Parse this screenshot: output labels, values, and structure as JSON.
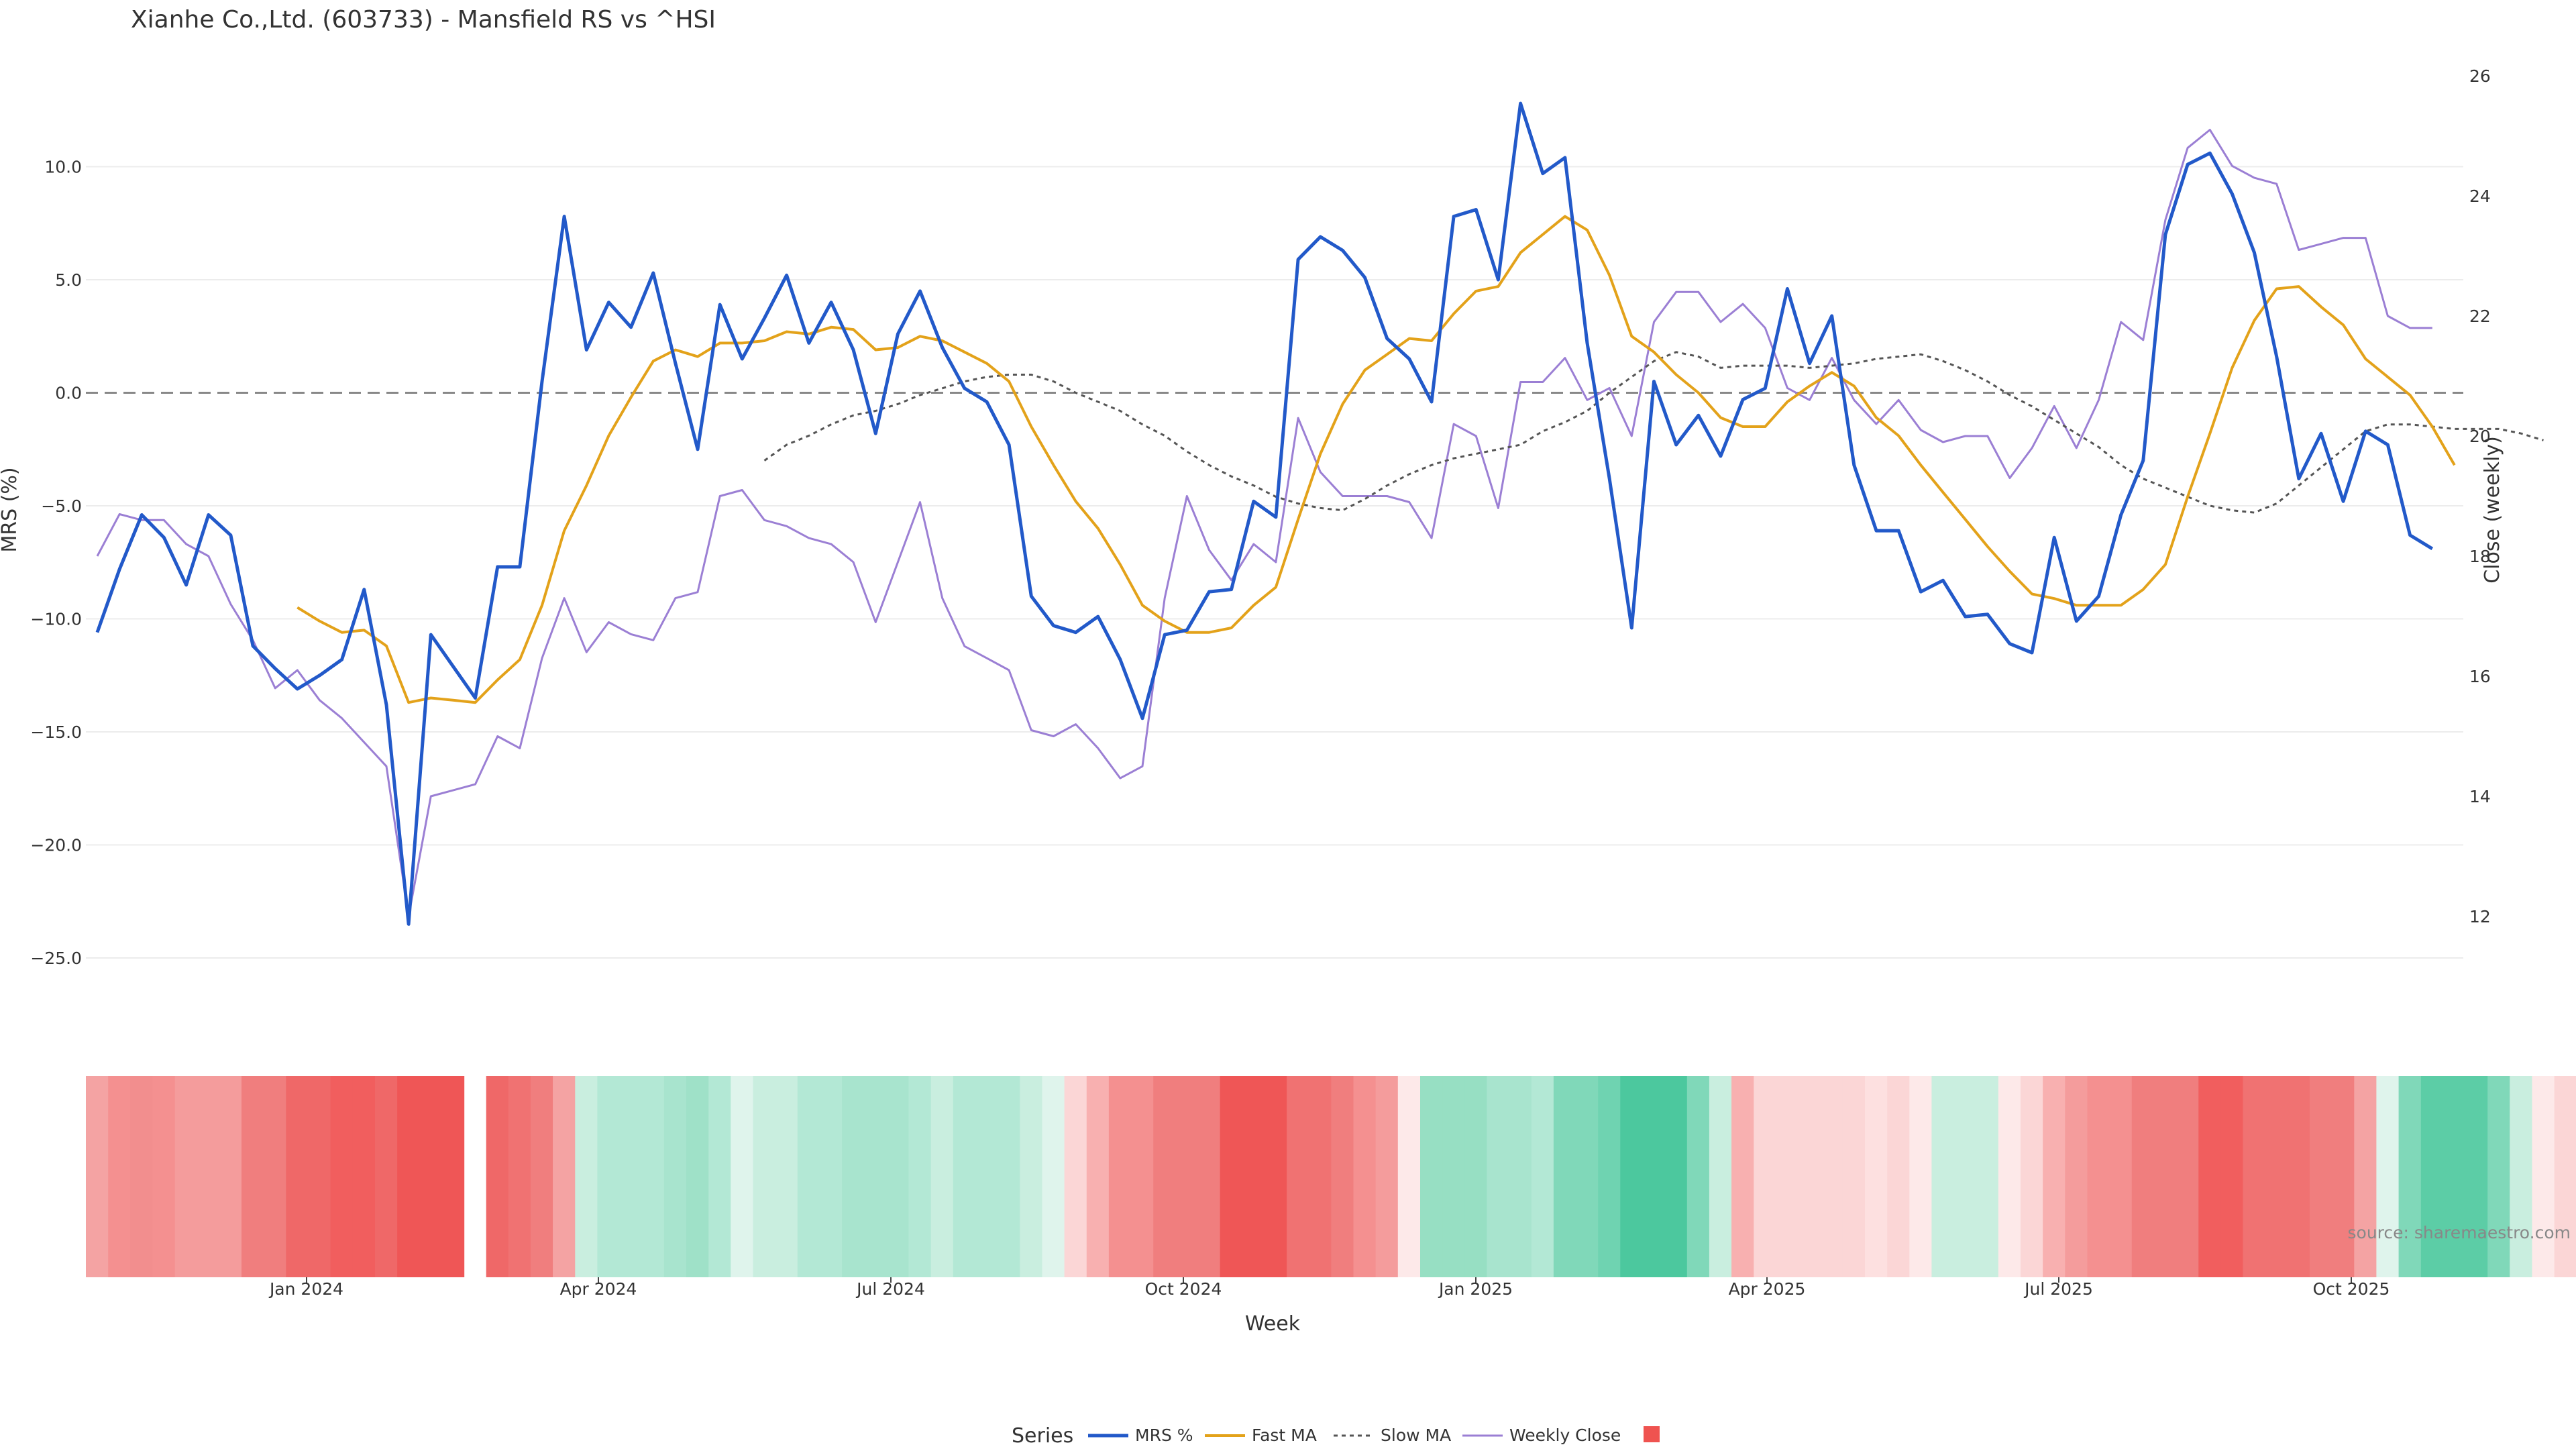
{
  "chart_data": {
    "type": "line",
    "title": "Xianhe Co.,Ltd. (603733) - Mansfield RS vs ^HSI",
    "xlabel": "Week",
    "ylabel": "MRS (%)",
    "y2label": "Close (weekly)",
    "ylim": [
      -28,
      14.5
    ],
    "y2lim": [
      10.5,
      26.5
    ],
    "yticks": [
      "10.0",
      "5.0",
      "0.0",
      "−5.0",
      "−10.0",
      "−15.0",
      "−20.0",
      "−25.0"
    ],
    "y2ticks": [
      "26",
      "24",
      "22",
      "20",
      "18",
      "16",
      "14",
      "12"
    ],
    "xticks": [
      "Jan 2024",
      "Apr 2024",
      "Jul 2024",
      "Oct 2024",
      "Jan 2025",
      "Apr 2025",
      "Jul 2025",
      "Oct 2025"
    ],
    "grid": true,
    "legend": {
      "title": "Series",
      "position": "bottom",
      "items": [
        "MRS %",
        "Fast MA",
        "Slow MA",
        "Weekly Close",
        ""
      ]
    },
    "source": "source: sharemaestro.com",
    "colors": {
      "mrs": "#2259c9",
      "fast": "#e3a21a",
      "slow": "#555555",
      "close": "#9b7fd4",
      "neg": "#ef5350",
      "pos": "#48c89c"
    },
    "series": [
      {
        "name": "MRS %",
        "axis": "left",
        "values": [
          -10.6,
          -7.8,
          -5.4,
          -6.4,
          -8.5,
          -5.4,
          -6.3,
          -11.2,
          -12.2,
          -13.1,
          -12.5,
          -11.8,
          -8.7,
          -13.8,
          -23.5,
          -10.7,
          -12.1,
          -13.5,
          -7.7,
          -7.7,
          0.5,
          7.8,
          1.9,
          4.0,
          2.9,
          5.3,
          1.3,
          -2.5,
          3.9,
          1.5,
          3.3,
          5.2,
          2.2,
          4.0,
          1.9,
          -1.8,
          2.6,
          4.5,
          2.0,
          0.2,
          -0.4,
          -2.3,
          -9.0,
          -10.3,
          -10.6,
          -9.9,
          -11.8,
          -14.4,
          -10.7,
          -10.5,
          -8.8,
          -8.7,
          -4.8,
          -5.5,
          5.9,
          6.9,
          6.3,
          5.1,
          2.4,
          1.5,
          -0.4,
          7.8,
          8.1,
          5.0,
          12.8,
          9.7,
          10.4,
          2.2,
          -3.8,
          -10.4,
          0.5,
          -2.3,
          -1.0,
          -2.8,
          -0.3,
          0.2,
          4.6,
          1.3,
          3.4,
          -3.2,
          -6.1,
          -6.1,
          -8.8,
          -8.3,
          -9.9,
          -9.8,
          -11.1,
          -11.5,
          -6.4,
          -10.1,
          -9.0,
          -5.4,
          -3.0,
          7.0,
          10.1,
          10.6,
          8.8,
          6.2,
          1.6,
          -3.8,
          -1.8,
          -4.8,
          -1.7,
          -2.3,
          -6.3,
          -6.9
        ]
      },
      {
        "name": "Fast MA",
        "axis": "left",
        "start": 9,
        "values": [
          -9.5,
          -10.1,
          -10.6,
          -10.5,
          -11.2,
          -13.7,
          -13.5,
          -13.6,
          -13.7,
          -12.7,
          -11.8,
          -9.4,
          -6.1,
          -4.1,
          -1.9,
          -0.2,
          1.4,
          1.9,
          1.6,
          2.2,
          2.2,
          2.3,
          2.7,
          2.6,
          2.9,
          2.8,
          1.9,
          2.0,
          2.5,
          2.3,
          1.8,
          1.3,
          0.5,
          -1.5,
          -3.2,
          -4.8,
          -6.0,
          -7.6,
          -9.4,
          -10.1,
          -10.6,
          -10.6,
          -10.4,
          -9.4,
          -8.6,
          -5.6,
          -2.7,
          -0.5,
          1.0,
          1.7,
          2.4,
          2.3,
          3.5,
          4.5,
          4.7,
          6.2,
          7.0,
          7.8,
          7.2,
          5.2,
          2.5,
          1.8,
          0.8,
          0.0,
          -1.1,
          -1.5,
          -1.5,
          -0.4,
          0.3,
          0.9,
          0.3,
          -1.1,
          -1.9,
          -3.2,
          -4.4,
          -5.6,
          -6.8,
          -7.9,
          -8.9,
          -9.1,
          -9.4,
          -9.4,
          -9.4,
          -8.7,
          -7.6,
          -4.6,
          -1.8,
          1.1,
          3.2,
          4.6,
          4.7,
          3.8,
          3.0,
          1.5,
          0.7,
          -0.1,
          -1.5,
          -3.2
        ]
      },
      {
        "name": "Slow MA",
        "axis": "left",
        "start": 30,
        "values": [
          -3.0,
          -2.3,
          -1.9,
          -1.4,
          -1.0,
          -0.8,
          -0.5,
          -0.1,
          0.2,
          0.5,
          0.7,
          0.8,
          0.8,
          0.5,
          0.0,
          -0.4,
          -0.8,
          -1.4,
          -1.9,
          -2.6,
          -3.2,
          -3.7,
          -4.1,
          -4.6,
          -4.9,
          -5.1,
          -5.2,
          -4.7,
          -4.1,
          -3.6,
          -3.2,
          -2.9,
          -2.7,
          -2.5,
          -2.3,
          -1.7,
          -1.3,
          -0.8,
          0.0,
          0.7,
          1.4,
          1.8,
          1.6,
          1.1,
          1.2,
          1.2,
          1.2,
          1.1,
          1.2,
          1.3,
          1.5,
          1.6,
          1.7,
          1.4,
          1.0,
          0.5,
          -0.1,
          -0.6,
          -1.2,
          -1.8,
          -2.4,
          -3.2,
          -3.8,
          -4.2,
          -4.6,
          -5.0,
          -5.2,
          -5.3,
          -4.9,
          -4.1,
          -3.3,
          -2.5,
          -1.7,
          -1.4,
          -1.4,
          -1.5,
          -1.6,
          -1.6,
          -1.6,
          -1.8,
          -2.1
        ]
      },
      {
        "name": "Weekly Close",
        "axis": "right",
        "values": [
          18.0,
          18.7,
          18.6,
          18.6,
          18.2,
          18.0,
          17.2,
          16.6,
          15.8,
          16.1,
          15.6,
          15.3,
          14.9,
          14.5,
          12.0,
          14.0,
          14.1,
          14.2,
          15.0,
          14.8,
          16.3,
          17.3,
          16.4,
          16.9,
          16.7,
          16.6,
          17.3,
          17.4,
          19.0,
          19.1,
          18.6,
          18.5,
          18.3,
          18.2,
          17.9,
          16.9,
          17.9,
          18.9,
          17.3,
          16.5,
          16.3,
          16.1,
          15.1,
          15.0,
          15.2,
          14.8,
          14.3,
          14.5,
          17.3,
          19.0,
          18.1,
          17.6,
          18.2,
          17.9,
          20.3,
          19.4,
          19.0,
          19.0,
          19.0,
          18.9,
          18.3,
          20.2,
          20.0,
          18.8,
          20.9,
          20.9,
          21.3,
          20.6,
          20.8,
          20.0,
          21.9,
          22.4,
          22.4,
          21.9,
          22.2,
          21.8,
          20.8,
          20.6,
          21.3,
          20.6,
          20.2,
          20.6,
          20.1,
          19.9,
          20.0,
          20.0,
          19.3,
          19.8,
          20.5,
          19.8,
          20.6,
          21.9,
          21.6,
          23.6,
          24.8,
          25.1,
          24.5,
          24.3,
          24.2,
          23.1,
          23.2,
          23.3,
          23.3,
          22.0,
          21.8,
          21.8
        ]
      }
    ],
    "heatmap_colors": [
      "#f4a3a3",
      "#f49090",
      "#f28e8e",
      "#f49090",
      "#f49c9c",
      "#f49c9c",
      "#f49c9c",
      "#f07e7e",
      "#f07e7e",
      "#ef6868",
      "#ef6868",
      "#f15e5e",
      "#f15e5e",
      "#ef6868",
      "#ef5656",
      "#ef5656",
      "#ef5656",
      "",
      "#ef6868",
      "#f07272",
      "#f07e7e",
      "#f4a3a3",
      "#c9eedf",
      "#b3e8d5",
      "#b3e8d5",
      "#b3e8d5",
      "#a8e4ce",
      "#9fe1c8",
      "#b3e8d5",
      "#dff4ec",
      "#c9eedf",
      "#c9eedf",
      "#b3e8d5",
      "#b3e8d5",
      "#a8e4ce",
      "#a8e4ce",
      "#a8e4ce",
      "#b3e8d5",
      "#c9eedf",
      "#b3e8d5",
      "#b3e8d5",
      "#b3e8d5",
      "#c9eedf",
      "#dff4ec",
      "#fbd6d6",
      "#f8b0b0",
      "#f49090",
      "#f49090",
      "#f07e7e",
      "#f07e7e",
      "#f07e7e",
      "#ef5656",
      "#ef5656",
      "#ef5656",
      "#f07272",
      "#f07272",
      "#f07e7e",
      "#f49090",
      "#f49c9c",
      "#fde9e9",
      "#97dfc3",
      "#97dfc3",
      "#97dfc3",
      "#a8e4ce",
      "#a8e4ce",
      "#b3e8d5",
      "#80d8b9",
      "#80d8b9",
      "#6fd3b1",
      "#4cc89e",
      "#4cc89e",
      "#4cc89e",
      "#80d8b9",
      "#c9eedf",
      "#f8b0b0",
      "#fbd6d6",
      "#fbd6d6",
      "#fbd6d6",
      "#fbd6d6",
      "#fbd6d6",
      "#fde0e0",
      "#fbd6d6",
      "#fde9e9",
      "#c9eedf",
      "#c9eedf",
      "#c9eedf",
      "#fde9e9",
      "#fbd6d6",
      "#f8b0b0",
      "#f49c9c",
      "#f49090",
      "#f49090",
      "#f07e7e",
      "#f07e7e",
      "#f07e7e",
      "#f15e5e",
      "#f15e5e",
      "#f07272",
      "#f07272",
      "#f07272",
      "#f07e7e",
      "#f07e7e",
      "#f4a3a3",
      "#dff4ec",
      "#80d8b9",
      "#5ccda6",
      "#5ccda6",
      "#5ccda6",
      "#80d8b9",
      "#c9eedf",
      "#fde9e9",
      "#fbd6d6",
      "#fbd6d6",
      "#fbd6d6",
      "#f8b0b0",
      "#f4a3a3"
    ]
  }
}
